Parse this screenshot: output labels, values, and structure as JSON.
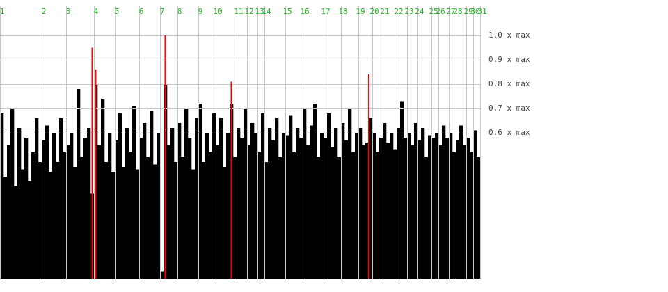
{
  "chart_data": {
    "type": "bar",
    "xlim": [
      0,
      138
    ],
    "xticks": [
      {
        "value": 0,
        "label": "1"
      },
      {
        "value": 12,
        "label": "2"
      },
      {
        "value": 19,
        "label": "3"
      },
      {
        "value": 27,
        "label": "4"
      },
      {
        "value": 33,
        "label": "5"
      },
      {
        "value": 40,
        "label": "6"
      },
      {
        "value": 46,
        "label": "7"
      },
      {
        "value": 51,
        "label": "8"
      },
      {
        "value": 57,
        "label": "9"
      },
      {
        "value": 62,
        "label": "10"
      },
      {
        "value": 68,
        "label": "11"
      },
      {
        "value": 71,
        "label": "12"
      },
      {
        "value": 74,
        "label": "13"
      },
      {
        "value": 76,
        "label": "14"
      },
      {
        "value": 82,
        "label": "15"
      },
      {
        "value": 87,
        "label": "16"
      },
      {
        "value": 93,
        "label": "17"
      },
      {
        "value": 98,
        "label": "18"
      },
      {
        "value": 103,
        "label": "19"
      },
      {
        "value": 107,
        "label": "20"
      },
      {
        "value": 110,
        "label": "21"
      },
      {
        "value": 114,
        "label": "22"
      },
      {
        "value": 117,
        "label": "23"
      },
      {
        "value": 120,
        "label": "24"
      },
      {
        "value": 124,
        "label": "25"
      },
      {
        "value": 126,
        "label": "26"
      },
      {
        "value": 129,
        "label": "27"
      },
      {
        "value": 131,
        "label": "28"
      },
      {
        "value": 134,
        "label": "29"
      },
      {
        "value": 136,
        "label": "30"
      },
      {
        "value": 138,
        "label": "31"
      }
    ],
    "ylim": [
      0,
      1.0
    ],
    "yticks": [
      {
        "value": 1.0,
        "label": "1.0 x max"
      },
      {
        "value": 0.9,
        "label": "0.9 x max"
      },
      {
        "value": 0.8,
        "label": "0.8 x max"
      },
      {
        "value": 0.7,
        "label": "0.7 x max"
      },
      {
        "value": 0.6,
        "label": "0.6 x max"
      }
    ],
    "grid": true,
    "series": [
      {
        "color": "#000000",
        "values": [
          0.68,
          0.42,
          0.55,
          0.7,
          0.38,
          0.62,
          0.45,
          0.58,
          0.4,
          0.52,
          0.66,
          0.48,
          0.57,
          0.63,
          0.44,
          0.6,
          0.48,
          0.66,
          0.52,
          0.55,
          0.6,
          0.46,
          0.78,
          0.5,
          0.58,
          0.62,
          0.35,
          0.8,
          0.55,
          0.74,
          0.48,
          0.6,
          0.44,
          0.57,
          0.68,
          0.46,
          0.62,
          0.52,
          0.71,
          0.45,
          0.58,
          0.64,
          0.5,
          0.69,
          0.47,
          0.6,
          0.03,
          0.8,
          0.55,
          0.62,
          0.48,
          0.64,
          0.5,
          0.7,
          0.58,
          0.45,
          0.66,
          0.72,
          0.48,
          0.6,
          0.52,
          0.68,
          0.55,
          0.66,
          0.46,
          0.6,
          0.72,
          0.5,
          0.62,
          0.58,
          0.7,
          0.55,
          0.64,
          0.6,
          0.52,
          0.68,
          0.48,
          0.62,
          0.57,
          0.66,
          0.5,
          0.6,
          0.59,
          0.67,
          0.52,
          0.62,
          0.58,
          0.7,
          0.55,
          0.63,
          0.72,
          0.5,
          0.6,
          0.58,
          0.68,
          0.54,
          0.62,
          0.5,
          0.64,
          0.57,
          0.7,
          0.52,
          0.6,
          0.62,
          0.55,
          0.56,
          0.66,
          0.6,
          0.52,
          0.58,
          0.64,
          0.56,
          0.6,
          0.53,
          0.62,
          0.73,
          0.58,
          0.6,
          0.55,
          0.64,
          0.57,
          0.62,
          0.5,
          0.59,
          0.58,
          0.6,
          0.55,
          0.63,
          0.58,
          0.6,
          0.52,
          0.57,
          0.63,
          0.55,
          0.58,
          0.52,
          0.61,
          0.5
        ]
      },
      {
        "color": "#ff0000",
        "x": [
          26,
          27,
          47,
          66,
          105.5
        ],
        "values": [
          0.95,
          0.86,
          1.0,
          0.81,
          0.84
        ]
      }
    ]
  }
}
